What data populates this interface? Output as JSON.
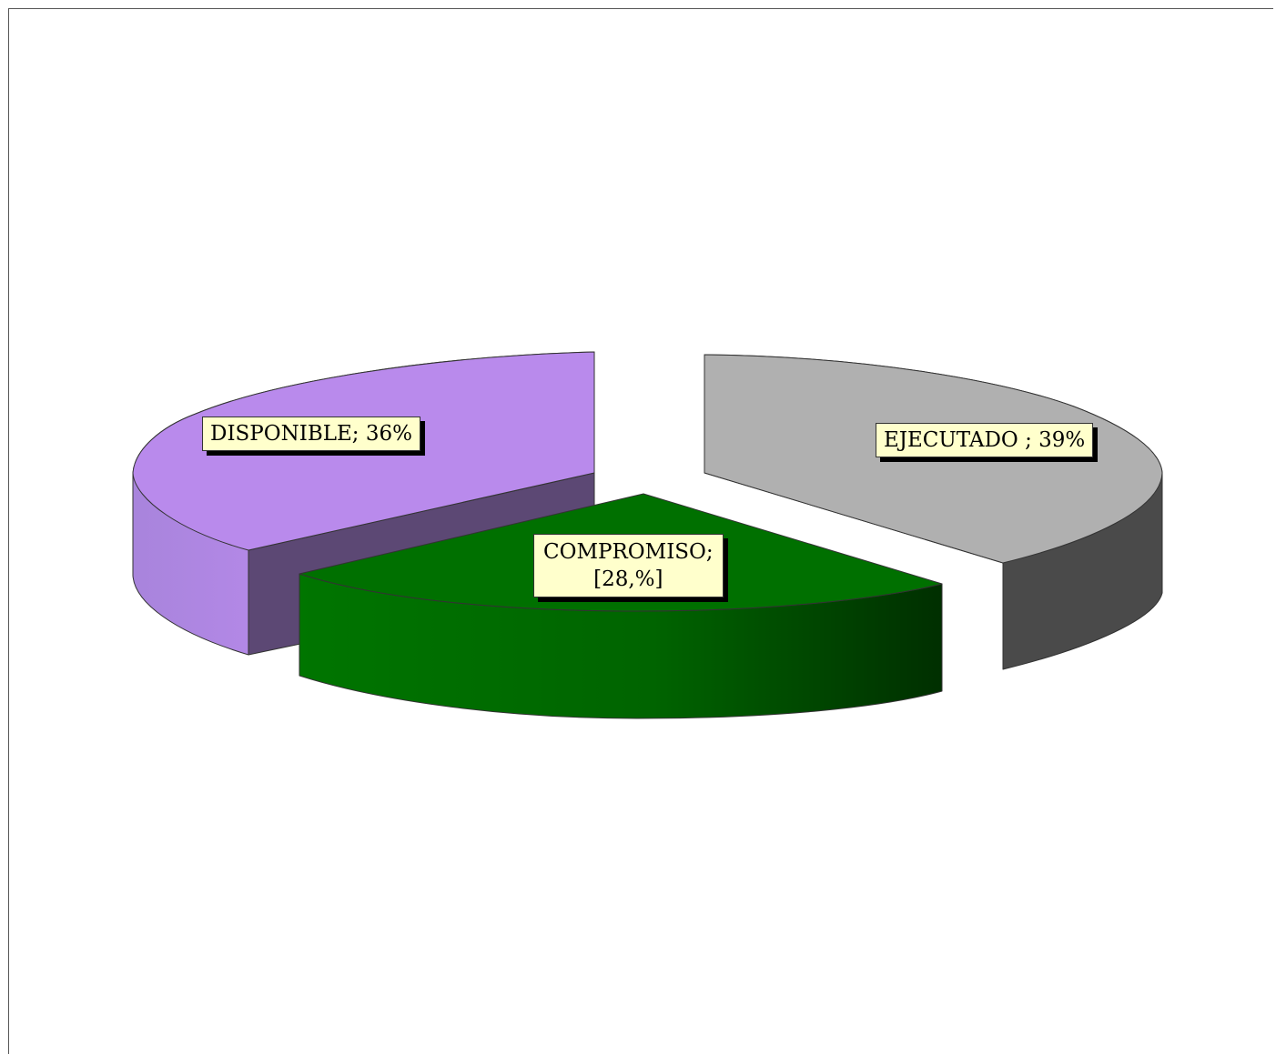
{
  "chart_data": {
    "type": "pie",
    "style": "3d-exploded",
    "slices": [
      {
        "name": "EJECUTADO",
        "value": 39,
        "color": "#b0b0b0",
        "side_color": "#4a4a4a",
        "label_line1": "EJECUTADO ; 39%",
        "label_line2": ""
      },
      {
        "name": "COMPROMISO",
        "value": 28,
        "color": "#007000",
        "side_color": "#006000",
        "label_line1": "COMPROMISO;",
        "label_line2": "[28,%]"
      },
      {
        "name": "DISPONIBLE",
        "value": 36,
        "color": "#b98aec",
        "side_color": "#5c4874",
        "label_line1": "DISPONIBLE; 36%",
        "label_line2": ""
      }
    ],
    "legend": "none"
  }
}
